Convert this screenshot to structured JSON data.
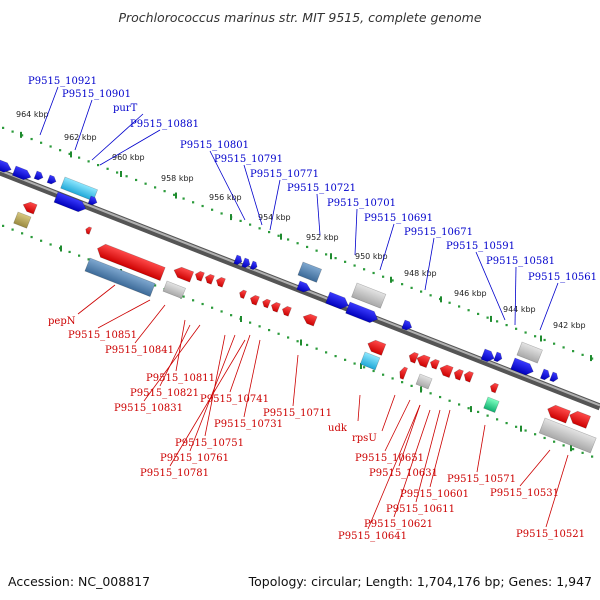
{
  "title": "Prochlorococcus marinus str. MIT 9515, complete genome",
  "footer": {
    "accession": "Accession: NC_008817",
    "summary": "Topology: circular; Length: 1,704,176 bp; Genes: 1,947"
  },
  "colors": {
    "forward_label": "#0000cc",
    "reverse_label": "#cc0000",
    "backbone": "#777777",
    "tick": "#228b22"
  },
  "ticks": [
    "964 kbp",
    "962 kbp",
    "960 kbp",
    "958 kbp",
    "956 kbp",
    "954 kbp",
    "952 kbp",
    "950 kbp",
    "948 kbp",
    "946 kbp",
    "944 kbp",
    "942 kbp"
  ],
  "forward_labels": [
    "P9515_10921",
    "P9515_10901",
    "purT",
    "P9515_10881",
    "P9515_10801",
    "P9515_10791",
    "P9515_10771",
    "P9515_10721",
    "P9515_10701",
    "P9515_10691",
    "P9515_10671",
    "P9515_10591",
    "P9515_10581",
    "P9515_10561"
  ],
  "reverse_labels": [
    "pepN",
    "P9515_10851",
    "P9515_10841",
    "P9515_10811",
    "P9515_10821",
    "P9515_10831",
    "P9515_10741",
    "P9515_10731",
    "P9515_10751",
    "P9515_10761",
    "P9515_10781",
    "P9515_10711",
    "udk",
    "rpsU",
    "P9515_10651",
    "P9515_10631",
    "P9515_10601",
    "P9515_10611",
    "P9515_10621",
    "P9515_10641",
    "P9515_10571",
    "P9515_10531",
    "P9515_10521"
  ]
}
